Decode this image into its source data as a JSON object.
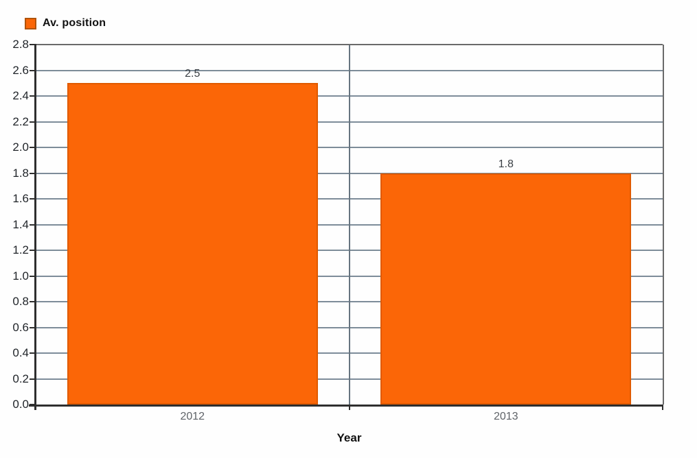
{
  "chart_data": {
    "type": "bar",
    "categories": [
      "2012",
      "2013"
    ],
    "series": [
      {
        "name": "Av. position",
        "values": [
          2.5,
          1.8
        ]
      }
    ],
    "bar_labels": [
      "2.5",
      "1.8"
    ],
    "title": "",
    "xlabel": "Year",
    "ylabel": "",
    "ylim": [
      0,
      2.8
    ],
    "ytick_step": 0.2,
    "grid": "horizontal",
    "legend_position": "top-left",
    "colors": {
      "bar_fill": "#fb6607",
      "bar_border": "#e05a00",
      "legend_swatch_border": "#b05309",
      "gridline": "#7d8c99",
      "divider": "#66747f",
      "axis": "#2e2e2e",
      "plot_border": "#6a6a6a",
      "tick_label": "#1f2328",
      "category_label": "#5f6368",
      "value_label": "#3a3f44",
      "background": "#fefefe"
    }
  }
}
